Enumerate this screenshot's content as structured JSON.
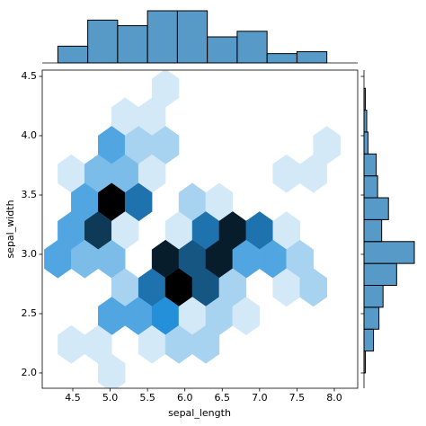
{
  "chart_data": [
    {
      "type": "hexbin",
      "xlabel": "sepal_length",
      "ylabel": "sepal_width",
      "color": "#1f77b4",
      "xlim": [
        4.091,
        8.313
      ],
      "ylim": [
        1.871,
        4.553
      ],
      "xticks": [
        4.5,
        {
          "value": 5,
          "label": "5.0"
        },
        5.5,
        {
          "value": 6,
          "label": "6.0"
        },
        6.5,
        {
          "value": 7,
          "label": "7.0"
        },
        7.5,
        {
          "value": 8,
          "label": "8.0"
        }
      ],
      "yticks": [
        {
          "value": 2,
          "label": "2.0"
        },
        2.5,
        {
          "value": 3,
          "label": "3.0"
        },
        3.5,
        {
          "value": 4,
          "label": "4.0"
        },
        4.5
      ],
      "x": [
        5.74,
        5.2,
        5.56,
        5.02,
        5.38,
        5.74,
        7.9,
        4.48,
        4.84,
        5.2,
        5.56,
        7.36,
        7.72,
        4.66,
        5.02,
        5.38,
        6.1,
        6.46,
        4.48,
        4.84,
        5.2,
        5.92,
        6.28,
        6.64,
        7.0,
        7.36,
        4.3,
        4.66,
        5.02,
        5.74,
        6.1,
        6.46,
        6.82,
        7.18,
        7.54,
        5.2,
        5.56,
        5.92,
        6.28,
        6.64,
        7.36,
        7.72,
        5.02,
        5.38,
        5.74,
        6.1,
        6.46,
        6.82,
        4.48,
        4.84,
        5.56,
        5.92,
        6.28,
        5.02
      ],
      "y": [
        4.4,
        4.16,
        4.16,
        3.92,
        3.92,
        3.92,
        3.92,
        3.68,
        3.68,
        3.68,
        3.68,
        3.68,
        3.68,
        3.44,
        3.44,
        3.44,
        3.44,
        3.44,
        3.2,
        3.2,
        3.2,
        3.2,
        3.2,
        3.2,
        3.2,
        3.2,
        2.96,
        2.96,
        2.96,
        2.96,
        2.96,
        2.96,
        2.96,
        2.96,
        2.96,
        2.72,
        2.72,
        2.72,
        2.72,
        2.72,
        2.72,
        2.72,
        2.48,
        2.48,
        2.48,
        2.48,
        2.48,
        2.48,
        2.24,
        2.24,
        2.24,
        2.24,
        2.24,
        2.0
      ],
      "counts": [
        1,
        1,
        1,
        4,
        2,
        2,
        1,
        1,
        3,
        3,
        1,
        1,
        1,
        4,
        10,
        6,
        2,
        1,
        4,
        8,
        1,
        1,
        6,
        9,
        6,
        1,
        4,
        3,
        3,
        9,
        7,
        9,
        4,
        4,
        2,
        2,
        6,
        10,
        7,
        2,
        1,
        2,
        4,
        4,
        5,
        1,
        2,
        1,
        1,
        1,
        1,
        2,
        2,
        1
      ]
    },
    {
      "type": "histogram",
      "orientation": "vertical",
      "color": "#1f77b4",
      "bins": [
        4.3,
        4.7,
        5.1,
        5.5,
        5.9,
        6.3,
        6.7,
        7.1,
        7.5,
        7.9
      ],
      "counts": [
        9,
        23,
        20,
        28,
        28,
        14,
        17,
        5,
        6
      ]
    },
    {
      "type": "histogram",
      "orientation": "horizontal",
      "color": "#1f77b4",
      "bins": [
        2.0,
        2.1846,
        2.3692,
        2.5538,
        2.7385,
        2.9231,
        3.1077,
        3.2923,
        3.4769,
        3.6615,
        3.8462,
        4.0308,
        4.2154,
        4.4
      ],
      "counts": [
        1,
        7,
        11,
        14,
        24,
        37,
        13,
        18,
        10,
        9,
        3,
        2,
        1
      ]
    }
  ]
}
